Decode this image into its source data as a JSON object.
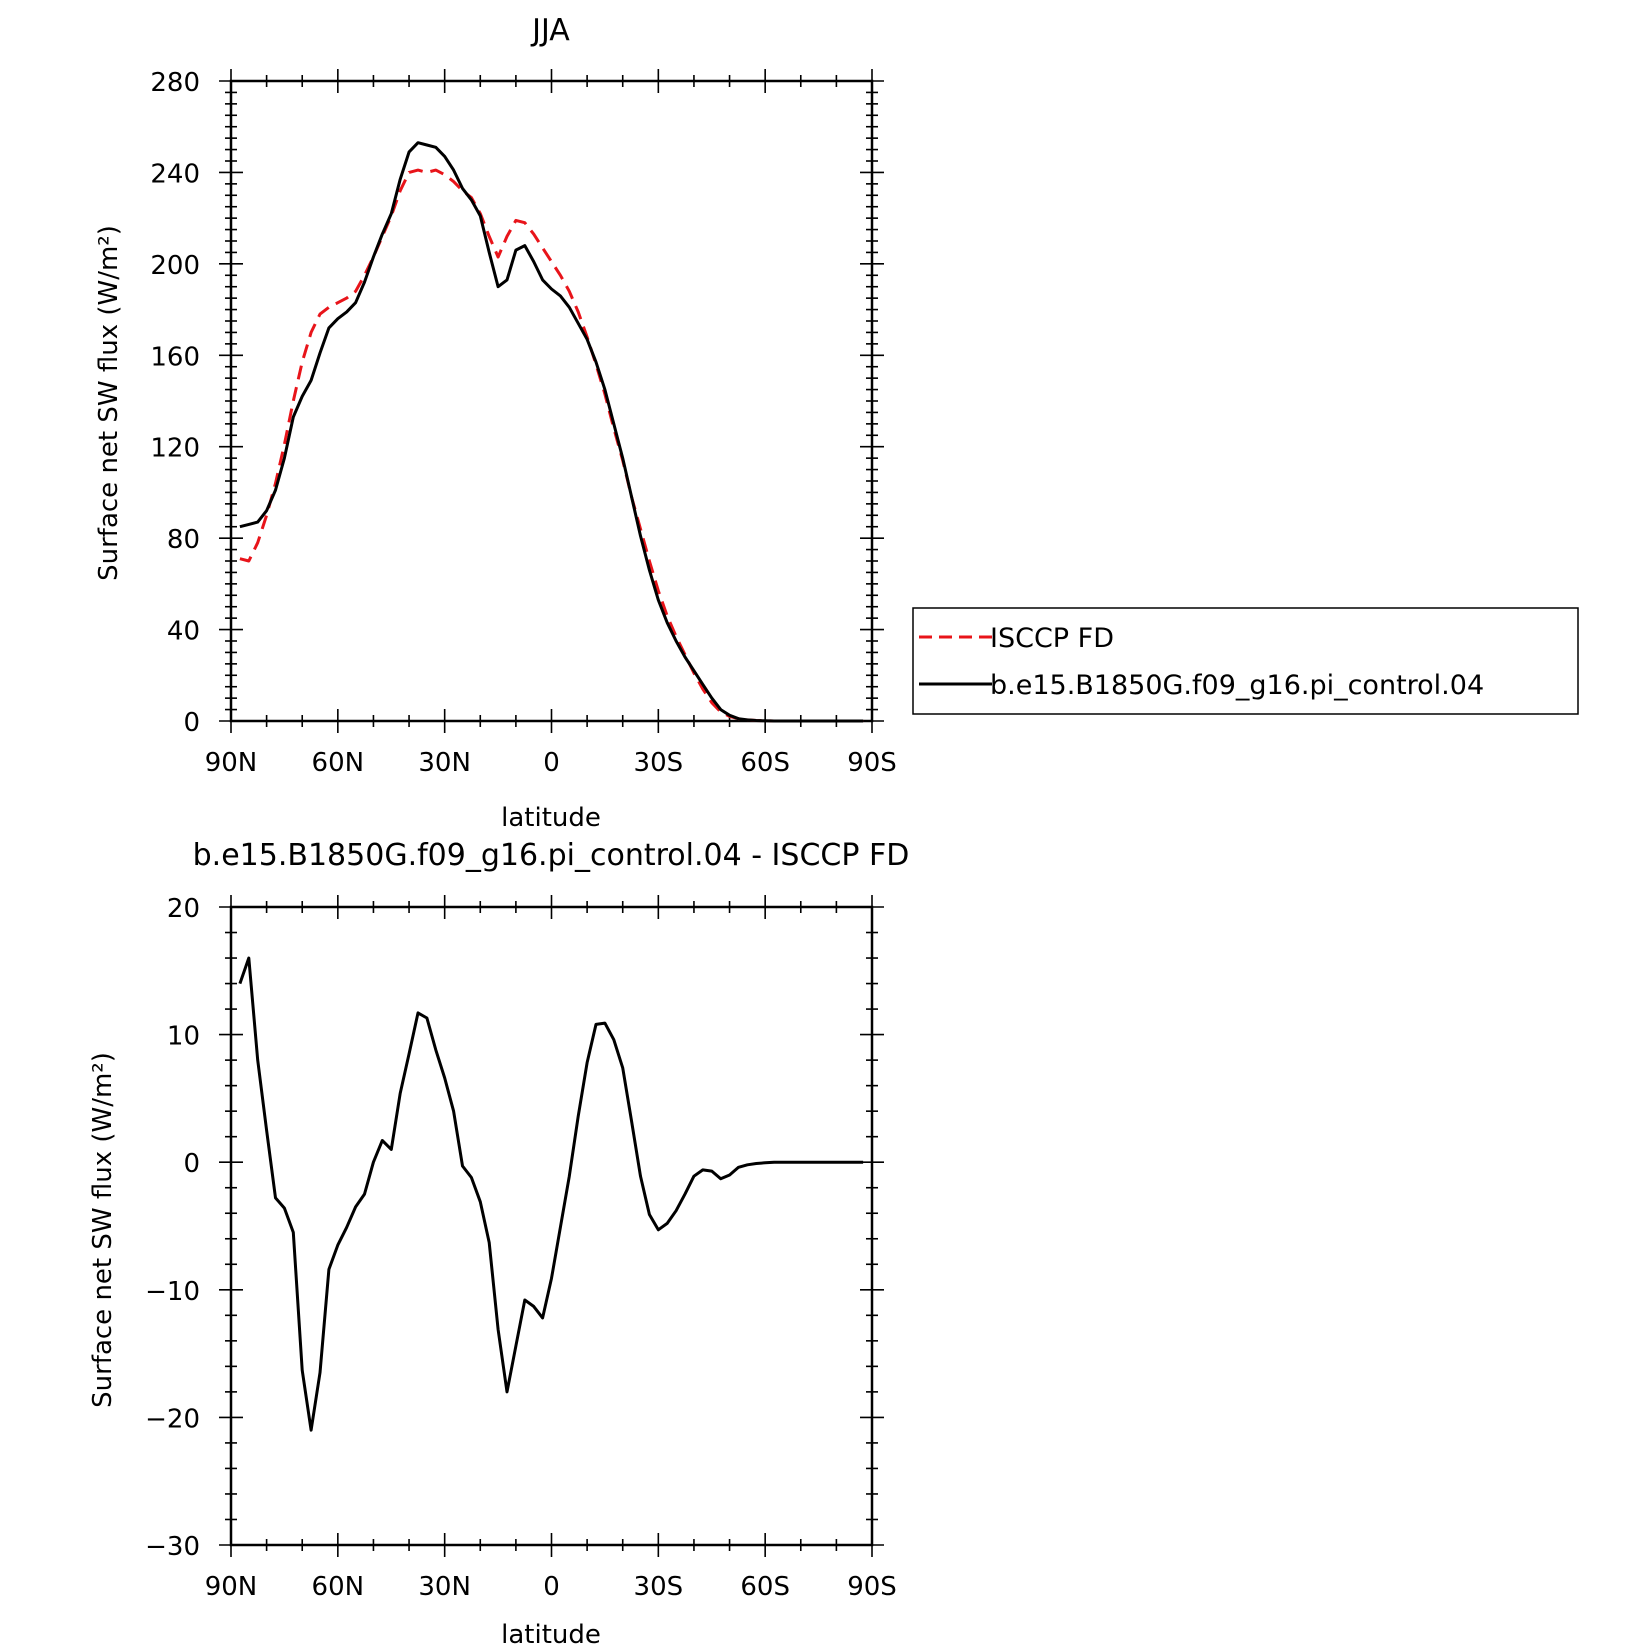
{
  "chart_data": [
    {
      "type": "line",
      "title": "JJA",
      "xlabel": "latitude",
      "ylabel": "Surface net SW flux (W/m²)",
      "xlim": [
        90,
        -90
      ],
      "ylim": [
        0,
        280
      ],
      "x_ticks": [
        90,
        60,
        30,
        0,
        -30,
        -60,
        -90
      ],
      "x_tick_labels": [
        "90N",
        "60N",
        "30N",
        "0",
        "30S",
        "60S",
        "90S"
      ],
      "y_ticks": [
        0,
        40,
        80,
        120,
        160,
        200,
        240,
        280
      ],
      "y_tick_labels": [
        "0",
        "40",
        "80",
        "120",
        "160",
        "200",
        "240",
        "280"
      ],
      "legend": {
        "placement": "right of plot"
      },
      "series": [
        {
          "name": "ISCCP FD",
          "color": "#e8141a",
          "style": "dashed",
          "x": [
            87.5,
            85,
            82.5,
            80,
            77.5,
            75,
            72.5,
            70,
            67.5,
            65,
            62.5,
            60,
            57.5,
            55,
            52.5,
            50,
            47.5,
            45,
            42.5,
            40,
            37.5,
            35,
            32.5,
            30,
            27.5,
            25,
            22.5,
            20,
            17.5,
            15,
            12.5,
            10,
            7.5,
            5,
            2.5,
            0,
            -2.5,
            -5,
            -7.5,
            -10,
            -12.5,
            -15,
            -17.5,
            -20,
            -22.5,
            -25,
            -27.5,
            -30,
            -32.5,
            -35,
            -37.5,
            -40,
            -42.5,
            -45,
            -47.5,
            -50,
            -52.5,
            -55,
            -57.5,
            -60,
            -62.5,
            -65,
            -67.5,
            -70,
            -72.5,
            -75,
            -77.5,
            -80,
            -82.5,
            -85,
            -87.5
          ],
          "values": [
            71,
            70,
            78,
            90,
            104,
            121,
            140,
            157,
            170,
            178,
            181,
            183,
            185,
            188,
            195,
            203,
            212,
            221,
            232,
            240,
            241,
            240,
            241,
            239,
            236,
            232,
            229,
            222,
            212,
            203,
            212,
            219,
            218,
            213,
            207,
            201,
            195,
            188,
            179,
            168,
            156,
            143,
            128,
            114,
            98,
            84,
            70,
            57,
            46,
            37,
            29,
            21,
            14,
            8,
            4,
            2,
            1,
            0.5,
            0.2,
            0.1,
            0,
            0,
            0,
            0,
            0,
            0,
            0,
            0,
            0,
            0,
            0
          ]
        },
        {
          "name": "b.e15.B1850G.f09_g16.pi_control.04",
          "color": "#000000",
          "style": "solid",
          "x": [
            87.5,
            85,
            82.5,
            80,
            77.5,
            75,
            72.5,
            70,
            67.5,
            65,
            62.5,
            60,
            57.5,
            55,
            52.5,
            50,
            47.5,
            45,
            42.5,
            40,
            37.5,
            35,
            32.5,
            30,
            27.5,
            25,
            22.5,
            20,
            17.5,
            15,
            12.5,
            10,
            7.5,
            5,
            2.5,
            0,
            -2.5,
            -5,
            -7.5,
            -10,
            -12.5,
            -15,
            -17.5,
            -20,
            -22.5,
            -25,
            -27.5,
            -30,
            -32.5,
            -35,
            -37.5,
            -40,
            -42.5,
            -45,
            -47.5,
            -50,
            -52.5,
            -55,
            -57.5,
            -60,
            -62.5,
            -65,
            -67.5,
            -70,
            -72.5,
            -75,
            -77.5,
            -80,
            -82.5,
            -85,
            -87.5
          ],
          "values": [
            85,
            86,
            87,
            92,
            101,
            115,
            133,
            142,
            149,
            161,
            172,
            176,
            179,
            183,
            192,
            203,
            213,
            222,
            237,
            249,
            253,
            252,
            251,
            247,
            241,
            233,
            228,
            221,
            205,
            190,
            193,
            206,
            208,
            201,
            193,
            189,
            186,
            181,
            174,
            167,
            157,
            145,
            130,
            115,
            98,
            81,
            66,
            53,
            43,
            35,
            28,
            22,
            16,
            10,
            5,
            2.5,
            1,
            0.5,
            0.2,
            0.1,
            0,
            0,
            0,
            0,
            0,
            0,
            0,
            0,
            0,
            0,
            0
          ]
        }
      ]
    },
    {
      "type": "line",
      "title": "b.e15.B1850G.f09_g16.pi_control.04 - ISCCP FD",
      "xlabel": "latitude",
      "ylabel": "Surface net SW flux (W/m²)",
      "xlim": [
        90,
        -90
      ],
      "ylim": [
        -30,
        20
      ],
      "x_ticks": [
        90,
        60,
        30,
        0,
        -30,
        -60,
        -90
      ],
      "x_tick_labels": [
        "90N",
        "60N",
        "30N",
        "0",
        "30S",
        "60S",
        "90S"
      ],
      "y_ticks": [
        -30,
        -20,
        -10,
        0,
        10,
        20
      ],
      "y_tick_labels": [
        "−30",
        "−20",
        "−10",
        "0",
        "10",
        "20"
      ],
      "series": [
        {
          "color": "#000000",
          "style": "solid",
          "x": [
            87.5,
            85,
            82.5,
            80,
            77.5,
            75,
            72.5,
            70,
            67.5,
            65,
            62.5,
            60,
            57.5,
            55,
            52.5,
            50,
            47.5,
            45,
            42.5,
            40,
            37.5,
            35,
            32.5,
            30,
            27.5,
            25,
            22.5,
            20,
            17.5,
            15,
            12.5,
            10,
            7.5,
            5,
            2.5,
            0,
            -2.5,
            -5,
            -7.5,
            -10,
            -12.5,
            -15,
            -17.5,
            -20,
            -22.5,
            -25,
            -27.5,
            -30,
            -32.5,
            -35,
            -37.5,
            -40,
            -42.5,
            -45,
            -47.5,
            -50,
            -52.5,
            -55,
            -57.5,
            -60,
            -62.5,
            -65,
            -67.5,
            -70,
            -72.5,
            -75,
            -77.5,
            -80,
            -82.5,
            -85,
            -87.5
          ],
          "values": [
            14,
            16,
            8,
            2.5,
            -2.8,
            -3.6,
            -5.5,
            -16.3,
            -21,
            -16.5,
            -8.4,
            -6.5,
            -5.1,
            -3.5,
            -2.5,
            0,
            1.7,
            1,
            5.4,
            8.5,
            11.7,
            11.3,
            8.8,
            6.6,
            4,
            -0.3,
            -1.2,
            -3.1,
            -6.3,
            -13.1,
            -18,
            -14.4,
            -10.8,
            -11.3,
            -12.2,
            -9.1,
            -5.1,
            -1.1,
            3.6,
            7.8,
            10.8,
            10.9,
            9.6,
            7.4,
            3.2,
            -1.1,
            -4.1,
            -5.3,
            -4.8,
            -3.8,
            -2.5,
            -1.1,
            -0.6,
            -0.7,
            -1.3,
            -1,
            -0.4,
            -0.2,
            -0.1,
            -0.05,
            0,
            0,
            0,
            0,
            0,
            0,
            0,
            0,
            0,
            0,
            0
          ]
        }
      ]
    }
  ]
}
